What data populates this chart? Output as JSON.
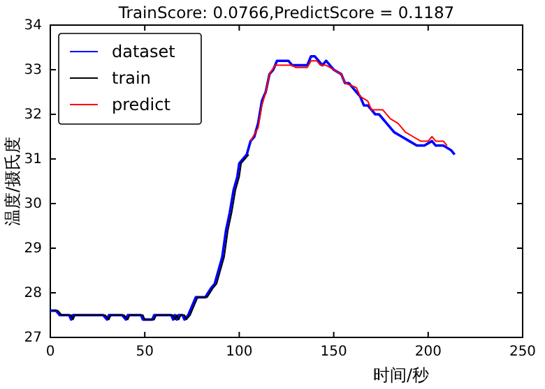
{
  "chart_data": {
    "type": "line",
    "title": "TrainScore: 0.0766,PredictScore = 0.1187",
    "xlabel": "时间/秒",
    "ylabel": "温度/摄氏度",
    "xlim": [
      0,
      250
    ],
    "ylim": [
      27,
      34
    ],
    "xticks": [
      0,
      50,
      100,
      150,
      200,
      250
    ],
    "yticks": [
      27,
      28,
      29,
      30,
      31,
      32,
      33,
      34
    ],
    "legend": "top left",
    "grid": false,
    "series": [
      {
        "name": "dataset",
        "color": "#0000ff",
        "x": [
          0,
          3,
          5,
          10,
          11,
          12,
          28,
          30,
          31,
          38,
          40,
          41,
          48,
          49,
          54,
          55,
          64,
          65,
          66,
          67,
          68,
          70,
          71,
          73,
          75,
          77,
          82,
          85,
          87,
          89,
          91,
          93,
          95,
          97,
          99,
          100,
          102,
          104,
          106,
          108,
          110,
          112,
          114,
          116,
          118,
          120,
          126,
          128,
          136,
          138,
          140,
          142,
          144,
          146,
          148,
          150,
          154,
          156,
          158,
          162,
          164,
          166,
          168,
          172,
          174,
          178,
          182,
          186,
          190,
          194,
          198,
          202,
          204,
          206,
          208,
          212,
          214
        ],
        "values": [
          27.6,
          27.6,
          27.5,
          27.5,
          27.4,
          27.5,
          27.5,
          27.4,
          27.5,
          27.5,
          27.4,
          27.5,
          27.5,
          27.4,
          27.4,
          27.5,
          27.5,
          27.4,
          27.5,
          27.4,
          27.5,
          27.5,
          27.4,
          27.5,
          27.7,
          27.9,
          27.9,
          28.1,
          28.2,
          28.5,
          28.8,
          29.4,
          29.8,
          30.3,
          30.6,
          30.9,
          31.0,
          31.1,
          31.4,
          31.5,
          31.8,
          32.3,
          32.5,
          32.9,
          33.0,
          33.2,
          33.2,
          33.1,
          33.1,
          33.3,
          33.3,
          33.2,
          33.1,
          33.2,
          33.1,
          33.0,
          32.9,
          32.7,
          32.7,
          32.5,
          32.4,
          32.2,
          32.2,
          32.0,
          32.0,
          31.8,
          31.6,
          31.5,
          31.4,
          31.3,
          31.3,
          31.4,
          31.3,
          31.3,
          31.3,
          31.2,
          31.1
        ]
      },
      {
        "name": "train",
        "color": "#000000",
        "x": [
          1,
          4,
          6,
          11,
          12,
          13,
          29,
          31,
          32,
          39,
          41,
          42,
          49,
          50,
          55,
          56,
          65,
          66,
          67,
          68,
          69,
          71,
          72,
          74,
          76,
          78,
          83,
          86,
          88,
          90,
          92,
          94,
          96,
          98,
          100,
          101,
          103,
          105
        ],
        "values": [
          27.6,
          27.6,
          27.5,
          27.5,
          27.4,
          27.5,
          27.5,
          27.4,
          27.5,
          27.5,
          27.4,
          27.5,
          27.5,
          27.4,
          27.4,
          27.5,
          27.5,
          27.4,
          27.5,
          27.4,
          27.5,
          27.5,
          27.4,
          27.5,
          27.7,
          27.9,
          27.9,
          28.1,
          28.2,
          28.5,
          28.8,
          29.4,
          29.8,
          30.3,
          30.6,
          30.9,
          31.0,
          31.1
        ]
      },
      {
        "name": "predict",
        "color": "#ff0000",
        "x": [
          106,
          110,
          112,
          114,
          116,
          119,
          128,
          130,
          136,
          138,
          141,
          143,
          146,
          150,
          154,
          156,
          162,
          164,
          168,
          170,
          176,
          180,
          184,
          188,
          192,
          196,
          200,
          202,
          204,
          206,
          208,
          210
        ],
        "values": [
          31.4,
          31.7,
          32.2,
          32.5,
          32.9,
          33.1,
          33.1,
          33.05,
          33.05,
          33.2,
          33.2,
          33.1,
          33.1,
          33.0,
          32.9,
          32.7,
          32.6,
          32.4,
          32.3,
          32.1,
          32.1,
          31.9,
          31.8,
          31.6,
          31.5,
          31.4,
          31.4,
          31.5,
          31.4,
          31.4,
          31.4,
          31.3
        ]
      }
    ]
  }
}
